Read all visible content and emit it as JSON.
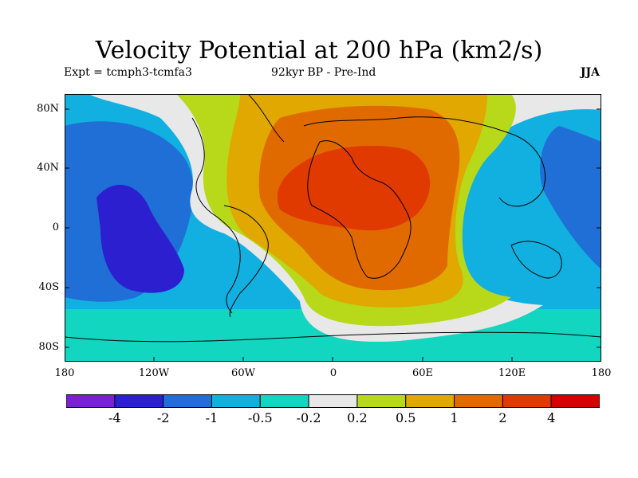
{
  "title": "Velocity Potential at 200 hPa (km2/s)",
  "subtitle_left": "Expt = tcmph3-tcmfa3",
  "subtitle_center": "92kyr BP - Pre-Ind",
  "subtitle_right": "JJA",
  "lat_ticks": [
    "80N",
    "40N",
    "0",
    "40S",
    "80S"
  ],
  "lon_ticks": [
    "180",
    "120W",
    "60W",
    "0",
    "60E",
    "120E",
    "180"
  ],
  "colorbar": {
    "colors": [
      "#7a1fd6",
      "#2b1fcf",
      "#1f6fd6",
      "#12b0e0",
      "#12d6c0",
      "#e8e8e8",
      "#b8d81a",
      "#e0a800",
      "#e06a00",
      "#e03a00",
      "#d60000"
    ],
    "labels": [
      "-4",
      "-2",
      "-1",
      "-0.5",
      "-0.2",
      "0.2",
      "0.5",
      "1",
      "2",
      "4"
    ]
  }
}
